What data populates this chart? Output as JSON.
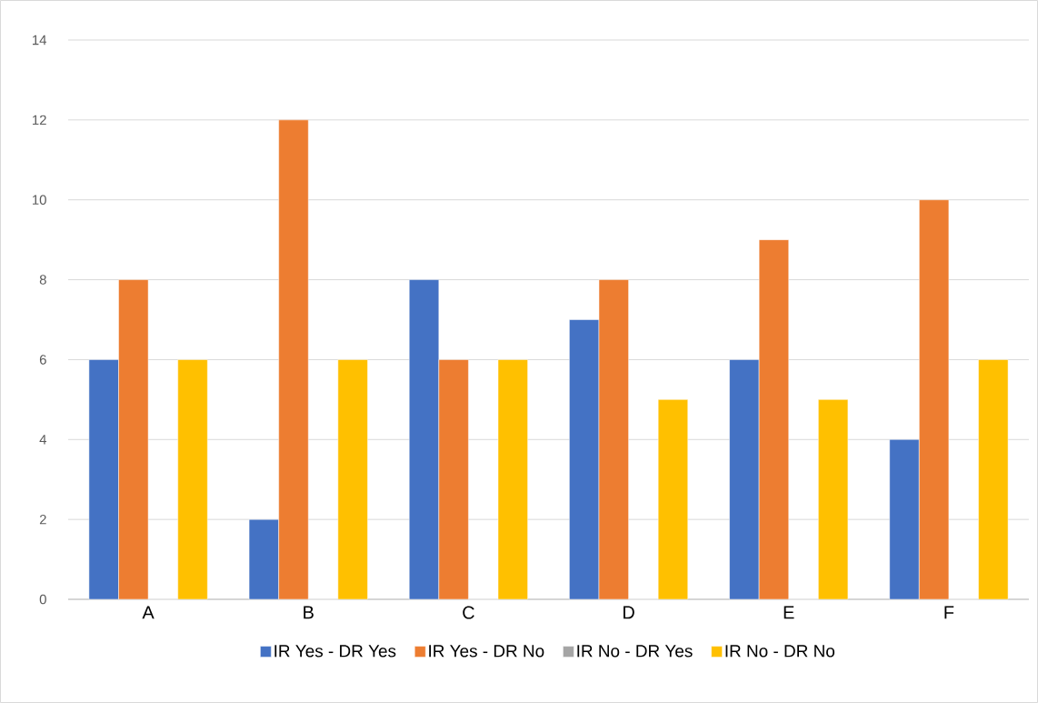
{
  "chart_data": {
    "type": "bar",
    "categories": [
      "A",
      "B",
      "C",
      "D",
      "E",
      "F"
    ],
    "series": [
      {
        "name": "IR Yes - DR Yes",
        "color": "#4472c4",
        "values": [
          6,
          2,
          8,
          7,
          6,
          4
        ]
      },
      {
        "name": "IR Yes - DR No",
        "color": "#ed7d31",
        "values": [
          8,
          12,
          6,
          8,
          9,
          10
        ]
      },
      {
        "name": "IR No - DR Yes",
        "color": "#a5a5a5",
        "values": [
          0,
          0,
          0,
          0,
          0,
          0
        ]
      },
      {
        "name": "IR No - DR No",
        "color": "#ffc000",
        "values": [
          6,
          6,
          6,
          5,
          5,
          6
        ]
      }
    ],
    "ylim": [
      0,
      14
    ],
    "yticks": [
      0,
      2,
      4,
      6,
      8,
      10,
      12,
      14
    ],
    "grid": "y",
    "legend": "bottom"
  }
}
